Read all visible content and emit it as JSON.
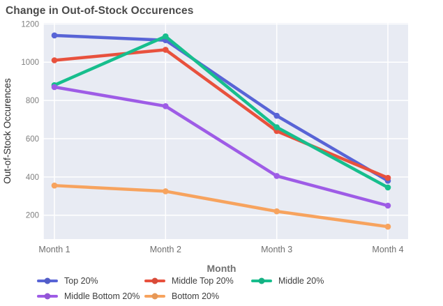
{
  "title": "Change in Out-of-Stock Occurences",
  "colors": {
    "plot_background": "#e8ebf3",
    "gridline": "#ffffff",
    "title_text": "#4a4a4a",
    "tick_text": "#7f7f7f",
    "axis_title_text": "#717171",
    "y_axis_title_text": "#2b2b2b",
    "legend_text": "#3d3d3d"
  },
  "chart_data": {
    "type": "line",
    "title": "Change in Out-of-Stock Occurences",
    "xlabel": "Month",
    "ylabel": "Out-of-Stock Occurences",
    "categories": [
      "Month 1",
      "Month 2",
      "Month 3",
      "Month 4"
    ],
    "yticks": [
      200,
      400,
      600,
      800,
      1000,
      1200
    ],
    "ylim": [
      75,
      1205
    ],
    "grid": true,
    "legend_position": "bottom",
    "marker": "circle",
    "series": [
      {
        "name": "Top 20%",
        "color": "#5864d6",
        "values": [
          1140,
          1115,
          720,
          380
        ]
      },
      {
        "name": "Middle Top 20%",
        "color": "#e8513d",
        "values": [
          1010,
          1065,
          640,
          395
        ]
      },
      {
        "name": "Middle 20%",
        "color": "#17be8d",
        "values": [
          880,
          1135,
          660,
          345
        ]
      },
      {
        "name": "Middle Bottom 20%",
        "color": "#9e5ce6",
        "values": [
          870,
          770,
          405,
          250
        ]
      },
      {
        "name": "Bottom 20%",
        "color": "#f7a35e",
        "values": [
          355,
          325,
          220,
          140
        ]
      }
    ]
  }
}
